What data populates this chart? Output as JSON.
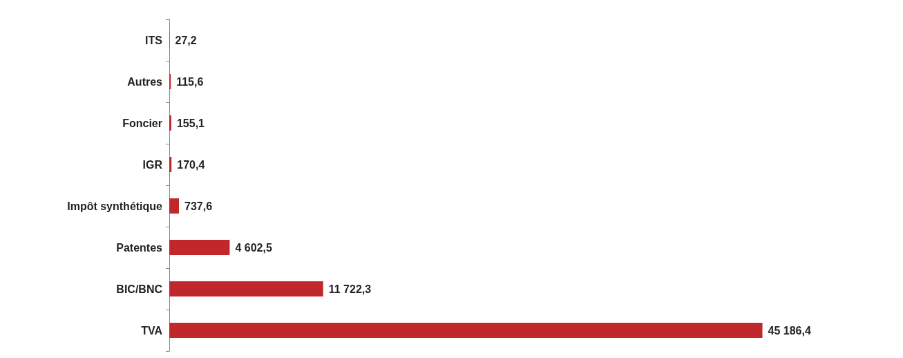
{
  "chart_data": {
    "type": "bar",
    "orientation": "horizontal",
    "categories": [
      "ITS",
      "Autres",
      "Foncier",
      "IGR",
      "Impôt synthétique",
      "Patentes",
      "BIC/BNC",
      "TVA"
    ],
    "values": [
      27.2,
      115.6,
      155.1,
      170.4,
      737.6,
      4602.5,
      11722.3,
      45186.4
    ],
    "value_labels": [
      "27,2",
      "115,6",
      "155,1",
      "170,4",
      "737,6",
      "4 602,5",
      "11 722,3",
      "45 186,4"
    ],
    "color": "#c0282c"
  }
}
